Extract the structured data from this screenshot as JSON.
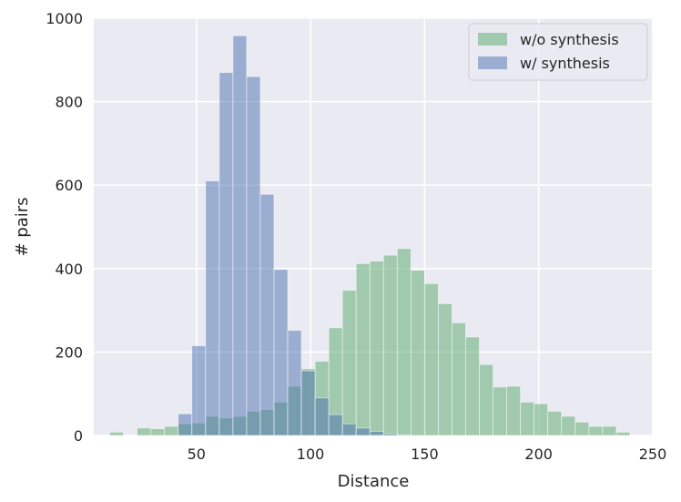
{
  "chart_data": {
    "type": "bar",
    "subtype": "overlaid-histogram",
    "title": "",
    "xlabel": "Distance",
    "ylabel": "# pairs",
    "xlim": [
      5,
      250
    ],
    "ylim": [
      0,
      1000
    ],
    "x_ticks": [
      50,
      100,
      150,
      200,
      250
    ],
    "y_ticks": [
      0,
      200,
      400,
      600,
      800,
      1000
    ],
    "grid": true,
    "legend_position": "top-right",
    "series": [
      {
        "name": "w/o synthesis",
        "color": "#55a868",
        "opacity": 0.5,
        "bin_edges": [
          12,
          18,
          24,
          30,
          36,
          42,
          48,
          54,
          60,
          66,
          72,
          78,
          84,
          90,
          96,
          102,
          108,
          114,
          120,
          126,
          132,
          138,
          144,
          150,
          156,
          162,
          168,
          174,
          180,
          186,
          192,
          198,
          204,
          210,
          216,
          222,
          228,
          234,
          240
        ],
        "values": [
          8,
          0,
          18,
          16,
          22,
          28,
          30,
          46,
          42,
          46,
          58,
          62,
          80,
          118,
          160,
          178,
          258,
          348,
          412,
          418,
          432,
          448,
          396,
          364,
          316,
          270,
          236,
          170,
          116,
          118,
          80,
          76,
          58,
          46,
          32,
          22,
          22,
          8
        ]
      },
      {
        "name": "w/ synthesis",
        "color": "#4c72b0",
        "opacity": 0.5,
        "bin_edges": [
          42,
          48,
          54,
          60,
          66,
          72,
          78,
          84,
          90,
          96,
          102,
          108,
          114,
          120,
          126,
          132,
          138,
          144
        ],
        "values": [
          52,
          215,
          610,
          870,
          958,
          860,
          578,
          398,
          252,
          155,
          90,
          50,
          28,
          18,
          10,
          4,
          2
        ]
      }
    ]
  }
}
